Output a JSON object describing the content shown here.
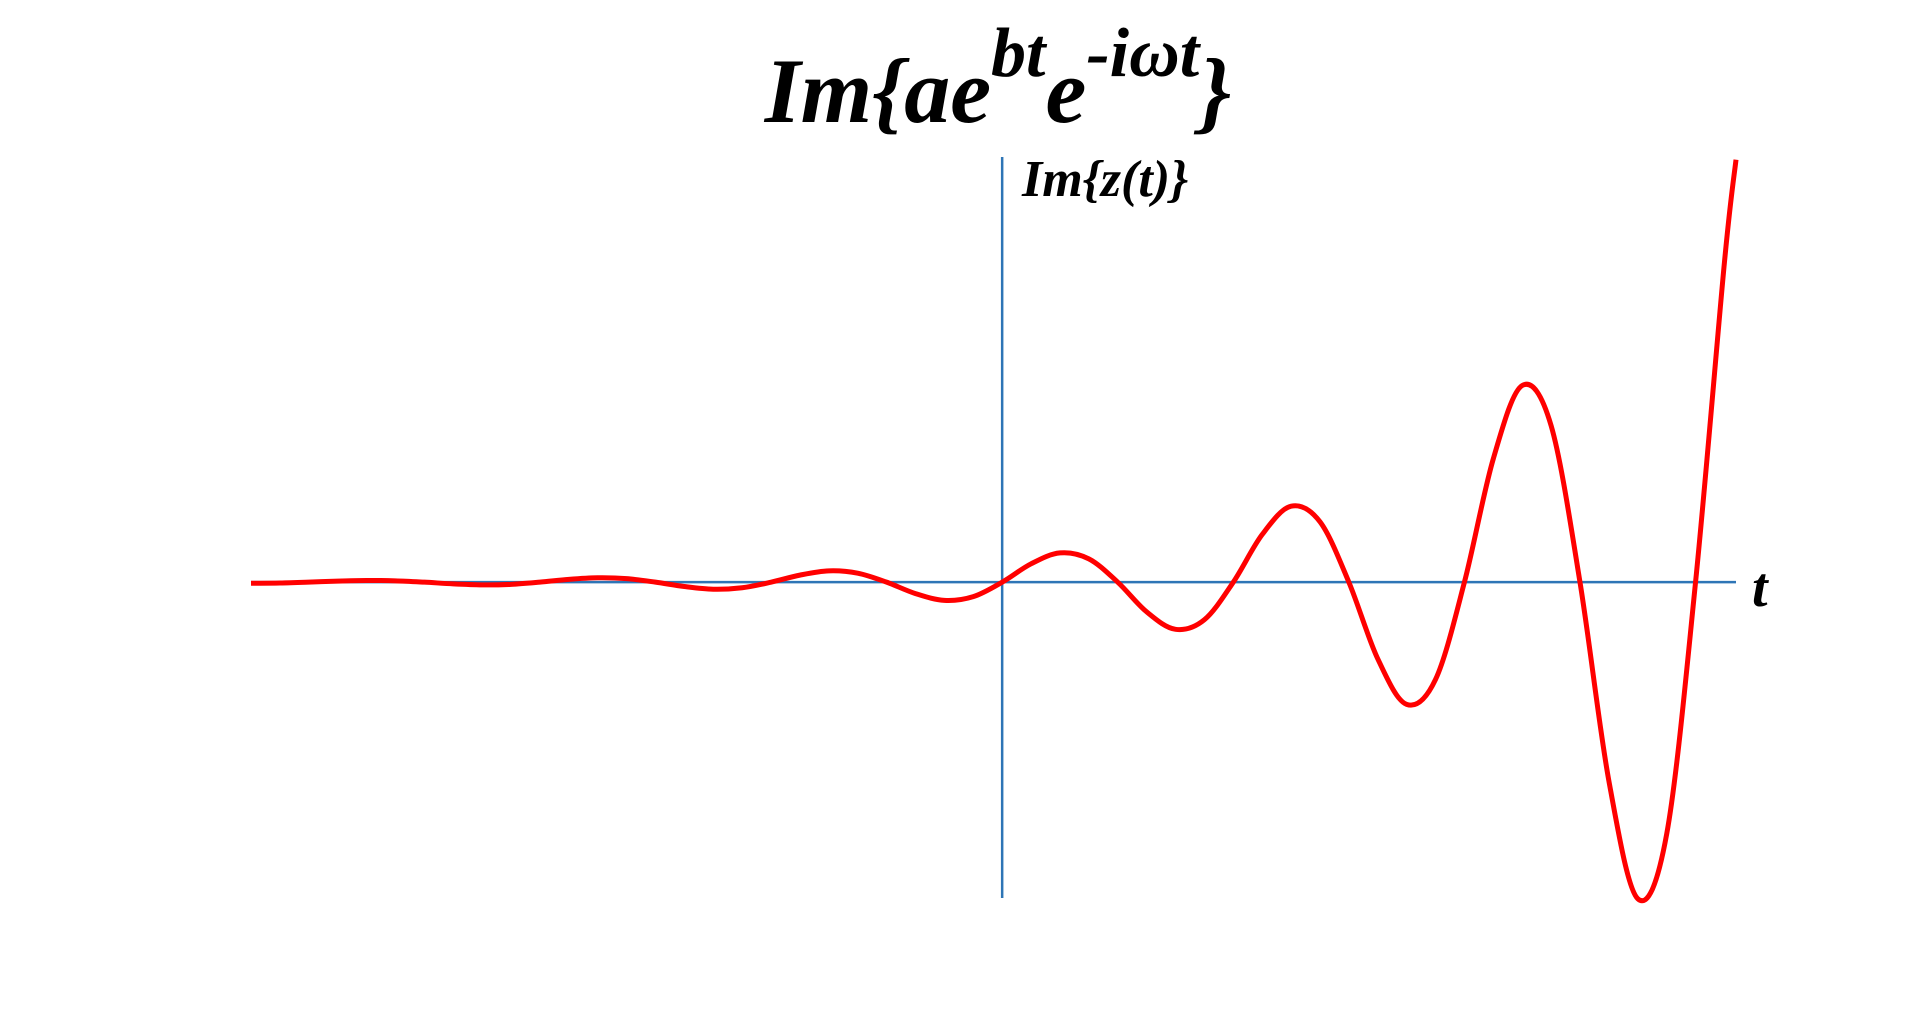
{
  "chart_data": {
    "type": "line",
    "title": [
      "Im{ae",
      "bt",
      "e",
      "-iωt",
      "}"
    ],
    "ylabel": "Im{z(t)}",
    "xlabel": "t",
    "x": [
      -6.5,
      -6.25,
      -6,
      -5.75,
      -5.5,
      -5.25,
      -5,
      -4.75,
      -4.5,
      -4.25,
      -4,
      -3.75,
      -3.5,
      -3.25,
      -3,
      -2.75,
      -2.5,
      -2.25,
      -2,
      -1.75,
      -1.5,
      -1.25,
      -1,
      -0.75,
      -0.5,
      -0.25,
      0,
      0.25,
      0.5,
      0.75,
      1,
      1.25,
      1.5,
      1.75,
      2,
      2.25,
      2.5,
      2.75,
      3,
      3.25,
      3.5,
      3.75,
      4,
      4.25,
      4.5,
      4.75,
      5,
      5.25,
      5.5,
      5.75,
      6,
      6.25,
      6.35
    ],
    "series": [
      {
        "color": "#ff0000",
        "values": [
          -0.009,
          -0.007,
          0,
          0.009,
          0.014,
          0.011,
          0,
          -0.014,
          -0.022,
          -0.018,
          0,
          0.023,
          0.036,
          0.029,
          0,
          -0.036,
          -0.058,
          -0.046,
          0,
          0.058,
          0.093,
          0.074,
          0,
          -0.094,
          -0.15,
          -0.119,
          0,
          0.151,
          0.241,
          0.192,
          0,
          -0.244,
          -0.388,
          -0.309,
          0,
          0.392,
          0.625,
          0.497,
          0,
          -0.631,
          -1.006,
          -0.801,
          0,
          1.016,
          1.619,
          1.289,
          0,
          -1.636,
          -2.606,
          -2.075,
          0,
          2.633,
          3.478
        ]
      }
    ],
    "xlim": [
      -6.5,
      6.35
    ],
    "ylim": [
      -2.6,
      3.5
    ],
    "axis_color": "#2e75b6"
  }
}
